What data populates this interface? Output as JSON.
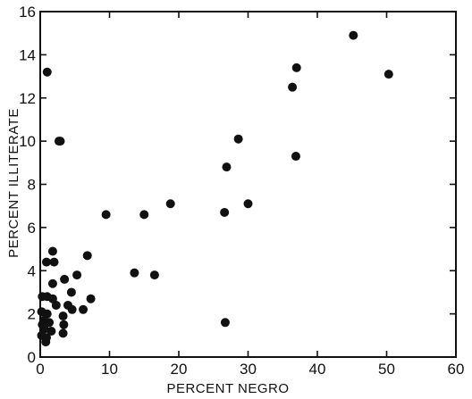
{
  "chart_data": {
    "type": "scatter",
    "title": "",
    "xlabel": "PERCENT NEGRO",
    "ylabel": "PERCENT ILLITERATE",
    "xlim": [
      0,
      60
    ],
    "ylim": [
      0,
      16
    ],
    "xticks": [
      "0",
      "10",
      "20",
      "30",
      "40",
      "50",
      "60"
    ],
    "yticks": [
      "0",
      "2",
      "4",
      "6",
      "8",
      "10",
      "12",
      "14",
      "16"
    ],
    "grid": false,
    "legend": "none",
    "marker_color": "#111111",
    "points": [
      {
        "x": 45.2,
        "y": 14.9
      },
      {
        "x": 37.0,
        "y": 13.4
      },
      {
        "x": 50.3,
        "y": 13.1
      },
      {
        "x": 36.4,
        "y": 12.5
      },
      {
        "x": 1.0,
        "y": 13.2
      },
      {
        "x": 2.7,
        "y": 10.0
      },
      {
        "x": 2.9,
        "y": 10.0
      },
      {
        "x": 28.6,
        "y": 10.1
      },
      {
        "x": 36.9,
        "y": 9.3
      },
      {
        "x": 26.9,
        "y": 8.8
      },
      {
        "x": 18.8,
        "y": 7.1
      },
      {
        "x": 30.0,
        "y": 7.1
      },
      {
        "x": 26.6,
        "y": 6.7
      },
      {
        "x": 9.5,
        "y": 6.6
      },
      {
        "x": 15.0,
        "y": 6.6
      },
      {
        "x": 6.8,
        "y": 4.7
      },
      {
        "x": 1.8,
        "y": 4.9
      },
      {
        "x": 0.9,
        "y": 4.4
      },
      {
        "x": 2.0,
        "y": 4.4
      },
      {
        "x": 13.6,
        "y": 3.9
      },
      {
        "x": 16.5,
        "y": 3.8
      },
      {
        "x": 5.3,
        "y": 3.8
      },
      {
        "x": 3.5,
        "y": 3.6
      },
      {
        "x": 1.8,
        "y": 3.4
      },
      {
        "x": 4.5,
        "y": 3.0
      },
      {
        "x": 0.3,
        "y": 2.8
      },
      {
        "x": 1.0,
        "y": 2.8
      },
      {
        "x": 1.8,
        "y": 2.7
      },
      {
        "x": 7.3,
        "y": 2.7
      },
      {
        "x": 2.3,
        "y": 2.4
      },
      {
        "x": 4.0,
        "y": 2.4
      },
      {
        "x": 4.6,
        "y": 2.2
      },
      {
        "x": 6.2,
        "y": 2.2
      },
      {
        "x": 0.2,
        "y": 2.1
      },
      {
        "x": 1.0,
        "y": 2.0
      },
      {
        "x": 3.3,
        "y": 1.9
      },
      {
        "x": 0.5,
        "y": 1.7
      },
      {
        "x": 1.3,
        "y": 1.6
      },
      {
        "x": 0.3,
        "y": 1.5
      },
      {
        "x": 3.4,
        "y": 1.5
      },
      {
        "x": 26.7,
        "y": 1.6
      },
      {
        "x": 0.6,
        "y": 1.3
      },
      {
        "x": 1.6,
        "y": 1.2
      },
      {
        "x": 0.2,
        "y": 1.0
      },
      {
        "x": 3.3,
        "y": 1.1
      },
      {
        "x": 0.9,
        "y": 0.9
      },
      {
        "x": 0.8,
        "y": 0.7
      }
    ]
  }
}
